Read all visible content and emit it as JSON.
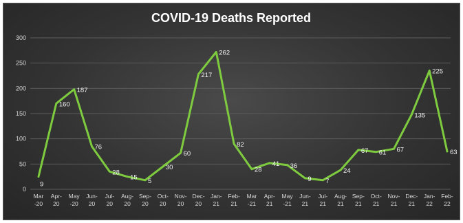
{
  "chart_data": {
    "type": "line",
    "title": "COVID-19 Deaths Reported",
    "xlabel": "",
    "ylabel": "",
    "ylim": [
      0,
      300
    ],
    "yticks": [
      0,
      50,
      100,
      150,
      200,
      250,
      300
    ],
    "grid": true,
    "legend": "none",
    "line_color": "#7ecb3f",
    "categories": [
      [
        "Mar",
        "-20"
      ],
      [
        "Apr-",
        "20"
      ],
      [
        "May",
        "-20"
      ],
      [
        "Jun-",
        "20"
      ],
      [
        "Jul-",
        "20"
      ],
      [
        "Aug-",
        "20"
      ],
      [
        "Sep-",
        "20"
      ],
      [
        "Oct-",
        "20"
      ],
      [
        "Nov-",
        "20"
      ],
      [
        "Dec-",
        "20"
      ],
      [
        "Jan-",
        "21"
      ],
      [
        "Feb-",
        "21"
      ],
      [
        "Mar",
        "-21"
      ],
      [
        "Apr-",
        "21"
      ],
      [
        "May",
        "-21"
      ],
      [
        "Jun-",
        "21"
      ],
      [
        "Jul-",
        "21"
      ],
      [
        "Aug-",
        "21"
      ],
      [
        "Sep-",
        "21"
      ],
      [
        "Oct-",
        "21"
      ],
      [
        "Nov-",
        "21"
      ],
      [
        "Dec-",
        "21"
      ],
      [
        "Jan-",
        "22"
      ],
      [
        "Feb-",
        "22"
      ]
    ],
    "series": [
      {
        "values": [
          25,
          170,
          198,
          85,
          35,
          25,
          18,
          45,
          72,
          228,
          272,
          90,
          40,
          52,
          48,
          22,
          18,
          38,
          78,
          74,
          80,
          148,
          235,
          75
        ],
        "data_labels": [
          "9",
          "160",
          "187",
          "76",
          "28",
          "15",
          "5",
          "30",
          "60",
          "217",
          "262",
          "82",
          "28",
          "41",
          "36",
          "9",
          "7",
          "24",
          "67",
          "61",
          "67",
          "135",
          "225",
          "63"
        ]
      }
    ]
  }
}
